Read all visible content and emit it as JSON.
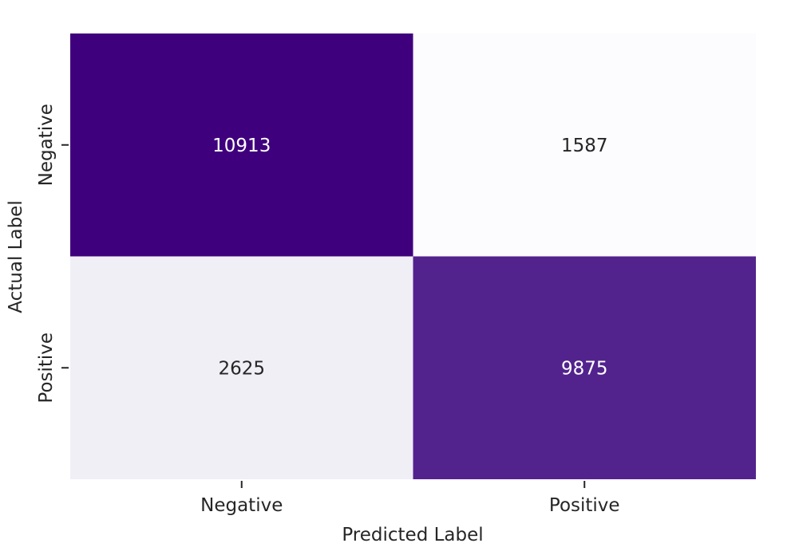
{
  "chart_data": {
    "type": "heatmap",
    "title": "",
    "xlabel": "Predicted Label",
    "ylabel": "Actual Label",
    "x_categories": [
      "Negative",
      "Positive"
    ],
    "y_categories": [
      "Negative",
      "Positive"
    ],
    "values": [
      [
        10913,
        1587
      ],
      [
        2625,
        9875
      ]
    ],
    "colormap": "Purples",
    "colorbar": false,
    "color_range": [
      1587,
      10913
    ],
    "text_dark_color": "#262626",
    "text_light_color": "#ffffff"
  }
}
